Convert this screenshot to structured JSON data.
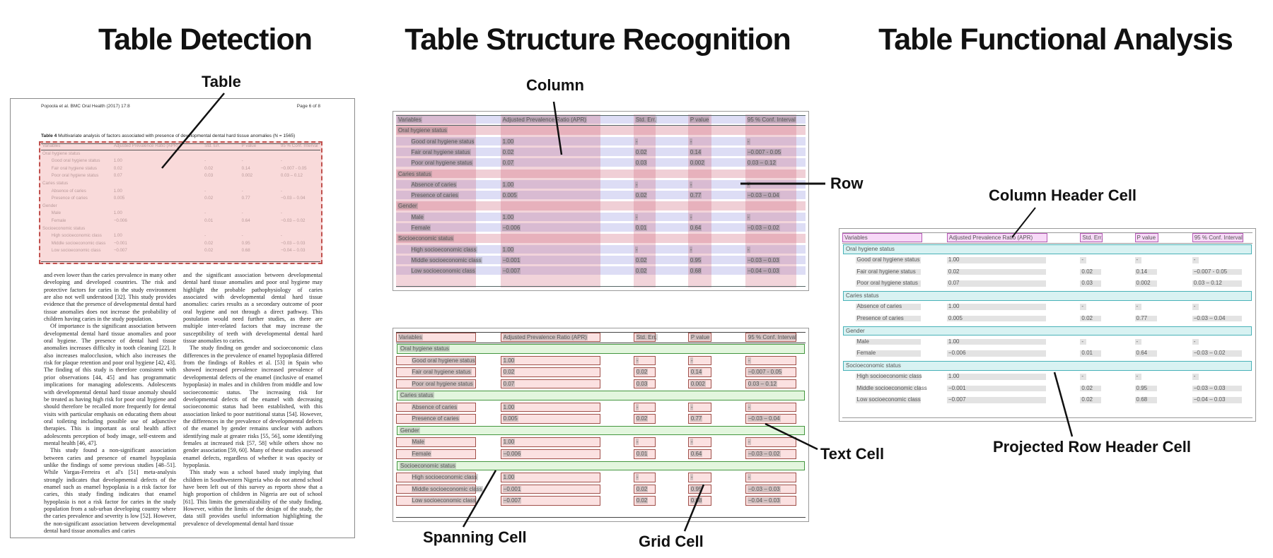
{
  "titles": {
    "detection": "Table Detection",
    "structure": "Table Structure Recognition",
    "functional": "Table Functional Analysis"
  },
  "annotations": {
    "table": "Table",
    "column": "Column",
    "row": "Row",
    "spanning_cell": "Spanning Cell",
    "grid_cell": "Grid Cell",
    "text_cell": "Text Cell",
    "column_header_cell": "Column Header Cell",
    "projected_row_header_cell": "Projected Row Header Cell"
  },
  "document": {
    "header_left": "Popoola et al. BMC Oral Health  (2017) 17:8",
    "header_right": "Page 6 of 8",
    "caption_label": "Table 4",
    "caption_text": " Multivariate analysis of factors associated with presence of developmental dental hard tissue anomalies (N = 1565)",
    "body_col1": [
      "and even lower than the caries prevalence in many other developing and developed countries. The risk and protective factors for caries in the study environment are also not well understood [32]. This study provides evidence that the presence of developmental dental hard tissue anomalies does not increase the probability of children having caries in the study population.",
      "Of importance is the significant association between developmental dental hard tissue anomalies and poor oral hygiene. The presence of dental hard tissue anomalies increases difficulty in tooth cleaning [22]. It also increases malocclusion, which also increases the risk for plaque retention and poor oral hygiene [42, 43]. The finding of this study is therefore consistent with prior observations [44, 45] and has programmatic implications for managing adolescents. Adolescents with developmental dental hard tissue anomaly should be treated as having high risk for poor oral hygiene and should therefore be recalled more frequently for dental visits with particular emphasis on educating them about oral toileting including possible use of adjunctive therapies. This is important as oral health affect adolescents perception of body image, self-esteem and mental health [46, 47].",
      "This study found a non-significant association between caries and presence of enamel hypoplasia unlike the findings of some previous studies [48–51]. While Vargas-Ferreira et al's [51] meta-analysis strongly indicates that developmental defects of the enamel such as enamel hypoplasia is a risk factor for caries, this study finding indicates that enamel hypoplasia is not a risk factor for caries in the study population from a sub-urban developing country where the caries prevalence and severity is low [52]. However, the non-significant association between developmental dental hard tissue anomalies and caries"
    ],
    "body_col2": [
      "and the significant association between developmental dental hard tissue anomalies and poor oral hygiene may highlight the probable pathophysiology of caries associated with developmental dental hard tissue anomalies: caries results as a secondary outcome of poor oral hygiene and not through a direct pathway. This postulation would need further studies, as there are multiple inter-related factors that may increase the susceptibility of teeth with developmental dental hard tissue anomalies to caries.",
      "The study finding on gender and socioeconomic class differences in the prevalence of enamel hypoplasia differed from the findings of Robles et al. [53] in Spain who showed increased prevalence increased prevalence of developmental defects of the enamel (inclusive of enamel hypoplasia) in males and in children from middle and low socioeconomic status. The increasing risk for developmental defects of the enamel with decreasing socioeconomic status had been established, with this association linked to poor nutritional status [54]. However, the differences in the prevalence of developmental defects of the enamel by gender remains unclear with authors identifying male at greater risks [55, 56], some identifying females at increased risk [57, 58] while others show no gender association [59, 60]. Many of these studies assessed enamel defects, regardless of whether it was opacity or hypoplasia.",
      "This study was a school based study implying that children in Southwestern Nigeria who do not attend school have been left out of this survey as reports show that a high proportion of children in Nigeria are out of school [61]. This limits the generalizability of the study finding. However, within the limits of the design of the study, the data still provides useful information highlighting the prevalence of developmental dental hard tissue"
    ]
  },
  "table": {
    "headers": [
      "Variables",
      "Adjusted Prevalence Ratio (APR)",
      "Std. Err.",
      "P value",
      "95 % Conf. Interval"
    ],
    "rows": [
      {
        "type": "section",
        "cells": [
          "Oral hygiene status"
        ]
      },
      {
        "type": "data",
        "cells": [
          "Good oral hygiene status",
          "1.00",
          "-",
          "-",
          "-"
        ]
      },
      {
        "type": "data",
        "cells": [
          "Fair oral hygiene status",
          "0.02",
          "0.02",
          "0.14",
          "−0.007 - 0.05"
        ]
      },
      {
        "type": "data",
        "cells": [
          "Poor oral hygiene status",
          "0.07",
          "0.03",
          "0.002",
          "0.03 – 0.12"
        ]
      },
      {
        "type": "section",
        "cells": [
          "Caries status"
        ]
      },
      {
        "type": "data",
        "cells": [
          "Absence of caries",
          "1.00",
          "-",
          "-",
          "-"
        ]
      },
      {
        "type": "data",
        "cells": [
          "Presence of caries",
          "0.005",
          "0.02",
          "0.77",
          "−0.03 – 0.04"
        ]
      },
      {
        "type": "section",
        "cells": [
          "Gender"
        ]
      },
      {
        "type": "data",
        "cells": [
          "Male",
          "1.00",
          "-",
          "-",
          "-"
        ]
      },
      {
        "type": "data",
        "cells": [
          "Female",
          "−0.006",
          "0.01",
          "0.64",
          "−0.03 – 0.02"
        ]
      },
      {
        "type": "section",
        "cells": [
          "Socioeconomic status"
        ]
      },
      {
        "type": "data",
        "cells": [
          "High socioeconomic class",
          "1.00",
          "-",
          "-",
          "-"
        ]
      },
      {
        "type": "data",
        "cells": [
          "Middle socioeconomic class",
          "−0.001",
          "0.02",
          "0.95",
          "−0.03 – 0.03"
        ]
      },
      {
        "type": "data",
        "cells": [
          "Low socioeconomic class",
          "−0.007",
          "0.02",
          "0.68",
          "−0.04 – 0.03"
        ]
      }
    ]
  },
  "colors": {
    "detection_box": "#c0504d",
    "column_band": "#ce5f78",
    "row_band": "#7878d6",
    "grid_cell_border": "#a0504a",
    "grid_cell_fill": "#fad8d8",
    "spanning_cell_border": "#44973f",
    "spanning_cell_fill": "#def4d8",
    "column_header_border": "#b55ab5",
    "column_header_fill": "#f6d5f6",
    "projected_row_header_border": "#49b2b8",
    "projected_row_header_fill": "#d4f1f1",
    "text_cell_fill": "#e3e3e3"
  }
}
